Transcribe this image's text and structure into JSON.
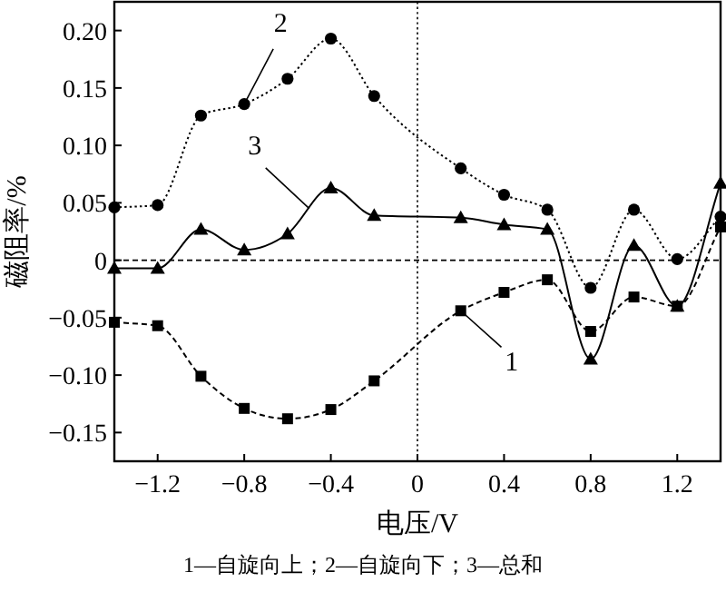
{
  "chart_data": {
    "type": "line",
    "xlabel": "电压/V",
    "ylabel": "磁阻率/%",
    "x": [
      -1.4,
      -1.2,
      -1.0,
      -0.8,
      -0.6,
      -0.4,
      -0.2,
      0.2,
      0.4,
      0.6,
      0.8,
      1.0,
      1.2,
      1.4
    ],
    "series": [
      {
        "color": "#000000",
        "marker": "square",
        "line_style": "dashed",
        "values": [
          -0.054,
          -0.057,
          -0.101,
          -0.129,
          -0.138,
          -0.13,
          -0.105,
          -0.044,
          -0.028,
          -0.017,
          -0.062,
          -0.032,
          -0.04,
          0.029
        ]
      },
      {
        "color": "#000000",
        "marker": "circle",
        "line_style": "dotted",
        "values": [
          0.046,
          0.048,
          0.126,
          0.136,
          0.158,
          0.193,
          0.143,
          0.08,
          0.057,
          0.044,
          -0.024,
          0.044,
          0.001,
          0.038
        ]
      },
      {
        "color": "#000000",
        "marker": "triangle",
        "line_style": "solid",
        "values": [
          -0.007,
          -0.007,
          0.027,
          0.009,
          0.023,
          0.063,
          0.039,
          0.037,
          0.031,
          0.027,
          -0.086,
          0.013,
          -0.04,
          0.067
        ]
      }
    ],
    "xlim": [
      -1.4,
      1.4
    ],
    "xticks": [
      {
        "value": -1.2,
        "label": "−1.2"
      },
      {
        "value": -0.8,
        "label": "−0.8"
      },
      {
        "value": -0.4,
        "label": "−0.4"
      },
      0,
      0.4,
      0.8,
      1.2
    ],
    "ylim": [
      -0.175,
      0.225
    ],
    "yticks": [
      {
        "value": -0.15,
        "label": "−0.15"
      },
      {
        "value": -0.1,
        "label": "−0.10"
      },
      {
        "value": -0.05,
        "label": "−0.05"
      },
      0,
      0.05,
      {
        "value": 0.1,
        "label": "0.10"
      },
      0.15,
      {
        "value": 0.2,
        "label": "0.20"
      }
    ],
    "ref_lines": [
      {
        "axis": "y",
        "value": 0,
        "line_style": "dashed"
      },
      {
        "axis": "x",
        "value": 0,
        "line_style": "dotted"
      }
    ],
    "annotations": [
      {
        "text": "2",
        "x": -0.8,
        "y": 0.136
      },
      {
        "text": "3",
        "x": -0.5,
        "y": 0.045
      },
      {
        "text": "1",
        "x": 0.2,
        "y": -0.044
      },
      "1—自旋向上；2—自旋向下；3—总和"
    ],
    "grid": false
  }
}
